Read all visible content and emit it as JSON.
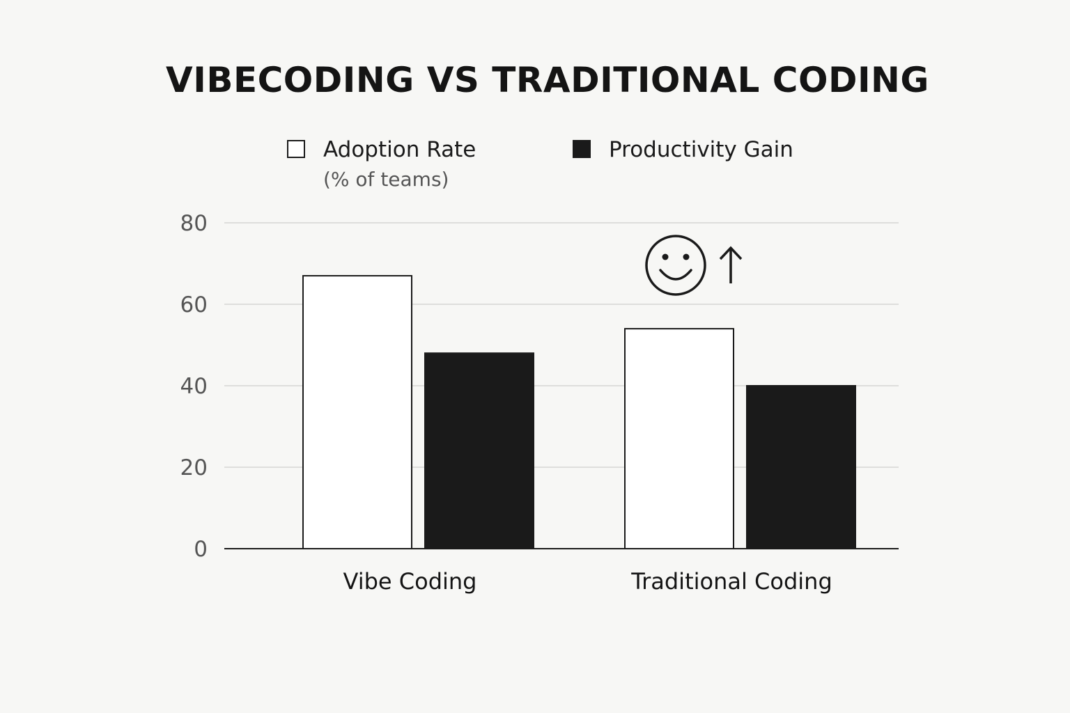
{
  "chart_data": {
    "type": "bar",
    "title": "VIBECODING VS TRADITIONAL CODING",
    "categories": [
      "Vibe Coding",
      "Traditional Coding"
    ],
    "series": [
      {
        "name": "Adoption Rate",
        "sublabel": "(% of teams)",
        "values": [
          67,
          54
        ],
        "color": "#ffffff"
      },
      {
        "name": "Productivity Gain",
        "values": [
          48,
          40
        ],
        "color": "#1a1a1a"
      }
    ],
    "ylim": [
      0,
      80
    ],
    "yticks": [
      "0",
      "20",
      "40",
      "60",
      "80"
    ],
    "xlabel": "",
    "ylabel": "",
    "grid": true,
    "legend": "top",
    "annotation": {
      "icon": "smiley-face-icon",
      "arrow": "up-arrow-icon",
      "category": "Traditional Coding"
    }
  }
}
